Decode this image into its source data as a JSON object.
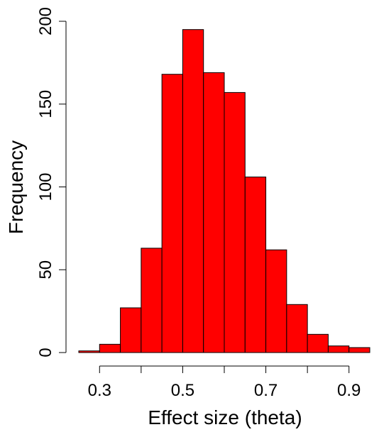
{
  "chart_data": {
    "type": "bar",
    "subtype": "histogram",
    "title": "",
    "xlabel": "Effect size (theta)",
    "ylabel": "Frequency",
    "bar_color": "#ff0000",
    "bar_edge_color": "#000000",
    "bins": [
      {
        "x0": 0.25,
        "x1": 0.3,
        "count": 1
      },
      {
        "x0": 0.3,
        "x1": 0.35,
        "count": 5
      },
      {
        "x0": 0.35,
        "x1": 0.4,
        "count": 27
      },
      {
        "x0": 0.4,
        "x1": 0.45,
        "count": 63
      },
      {
        "x0": 0.45,
        "x1": 0.5,
        "count": 168
      },
      {
        "x0": 0.5,
        "x1": 0.55,
        "count": 195
      },
      {
        "x0": 0.55,
        "x1": 0.6,
        "count": 169
      },
      {
        "x0": 0.6,
        "x1": 0.65,
        "count": 157
      },
      {
        "x0": 0.65,
        "x1": 0.7,
        "count": 106
      },
      {
        "x0": 0.7,
        "x1": 0.75,
        "count": 62
      },
      {
        "x0": 0.75,
        "x1": 0.8,
        "count": 29
      },
      {
        "x0": 0.8,
        "x1": 0.85,
        "count": 11
      },
      {
        "x0": 0.85,
        "x1": 0.9,
        "count": 4
      },
      {
        "x0": 0.9,
        "x1": 0.95,
        "count": 3
      }
    ],
    "xlim": [
      0.25,
      0.95
    ],
    "ylim": [
      0,
      200
    ],
    "x_ticks": [
      0.3,
      0.4,
      0.5,
      0.6,
      0.7,
      0.8,
      0.9
    ],
    "x_tick_labels": [
      "0.3",
      "",
      "0.5",
      "",
      "0.7",
      "",
      "0.9"
    ],
    "y_ticks": [
      0,
      50,
      100,
      150,
      200
    ],
    "y_tick_labels": [
      "0",
      "50",
      "100",
      "150",
      "200"
    ],
    "grid": false,
    "legend": false
  }
}
